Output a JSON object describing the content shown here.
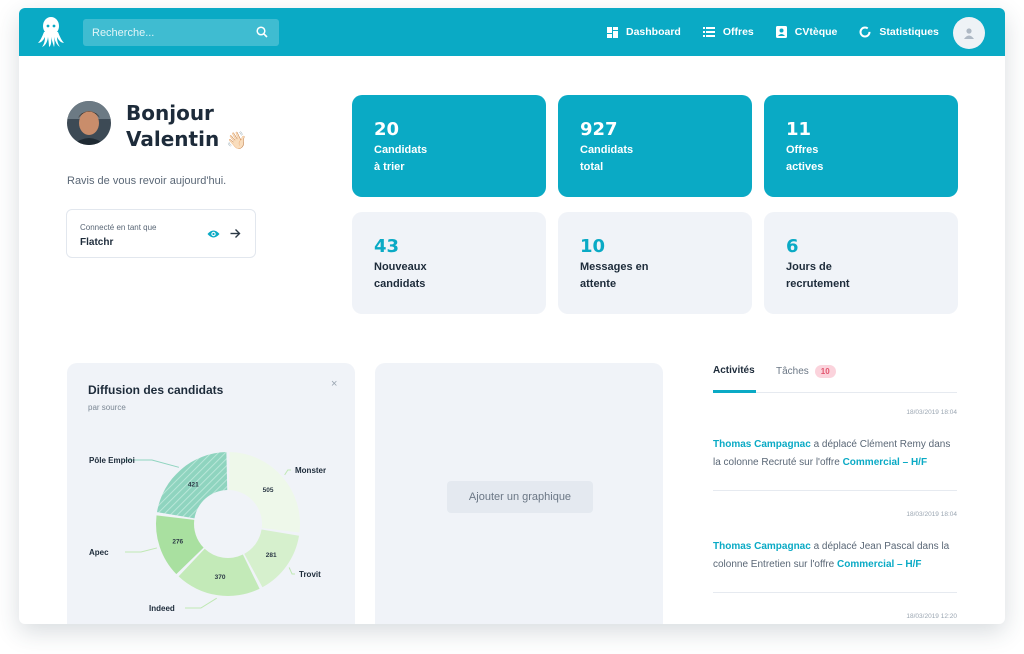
{
  "header": {
    "search_placeholder": "Recherche...",
    "nav": [
      {
        "label": "Dashboard",
        "icon": "dashboard-icon"
      },
      {
        "label": "Offres",
        "icon": "list-icon"
      },
      {
        "label": "CVtèque",
        "icon": "contact-card-icon"
      },
      {
        "label": "Statistiques",
        "icon": "donut-chart-icon"
      }
    ]
  },
  "greeting": {
    "line1": "Bonjour",
    "line2": "Valentin",
    "emoji": "👋🏻",
    "subtitle": "Ravis de vous revoir aujourd'hui.",
    "connected_label": "Connecté en tant que",
    "connected_value": "Flatchr"
  },
  "stats": [
    {
      "value": "20",
      "label": "Candidats\nà trier"
    },
    {
      "value": "927",
      "label": "Candidats\ntotal"
    },
    {
      "value": "11",
      "label": "Offres\nactives"
    },
    {
      "value": "43",
      "label": "Nouveaux\ncandidats"
    },
    {
      "value": "10",
      "label": "Messages en\nattente"
    },
    {
      "value": "6",
      "label": "Jours de\nrecrutement"
    }
  ],
  "diffusion": {
    "title": "Diffusion des candidats",
    "subtitle": "par source",
    "close": "×"
  },
  "chart_data": {
    "type": "pie",
    "title": "Diffusion des candidats",
    "subtitle": "par source",
    "categories": [
      "Monster",
      "Trovit",
      "Indeed",
      "Apec",
      "Pôle Emploi"
    ],
    "values": [
      505,
      281,
      370,
      276,
      421
    ],
    "colors": [
      "#eef8ea",
      "#d6f0cd",
      "#c3eab8",
      "#a9e0a0",
      "#8fd4bf"
    ]
  },
  "add_chart": {
    "label": "Ajouter un graphique"
  },
  "activity": {
    "tab_activities": "Activités",
    "tab_tasks": "Tâches",
    "tasks_count": "10",
    "items": [
      {
        "timestamp": "18/03/2019 18:04",
        "who": "Thomas Campagnac",
        "text": " a déplacé Clément Remy dans la colonne Recruté sur l'offre ",
        "offer": "Commercial – H/F"
      },
      {
        "timestamp": "18/03/2019 18:04",
        "who": "Thomas Campagnac",
        "text": " a déplacé Jean Pascal dans la colonne Entretien sur l'offre ",
        "offer": "Commercial – H/F"
      }
    ],
    "next_timestamp": "18/03/2019 12:20"
  }
}
